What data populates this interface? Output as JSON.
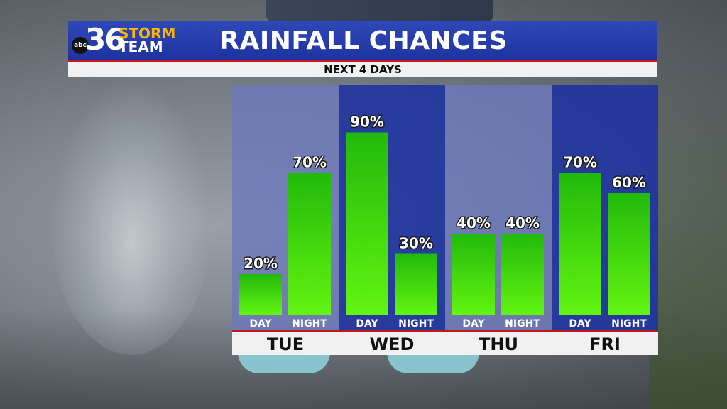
{
  "header": {
    "logo": {
      "network": "abc",
      "number": "36",
      "word1": "STORM",
      "word2": "TEAM"
    },
    "title": "RAINFALL CHANCES",
    "subtitle": "NEXT 4 DAYS"
  },
  "colors": {
    "header_blue": "#2438a8",
    "rule_red": "#c4161c",
    "bar_green_top": "#22b90b",
    "bar_green_bottom": "#62f411",
    "panel_light": "#6b78b8",
    "panel_dark": "#2038a0"
  },
  "chart_data": {
    "type": "bar",
    "categories": [
      "TUE",
      "WED",
      "THU",
      "FRI"
    ],
    "sub_categories": [
      "DAY",
      "NIGHT"
    ],
    "values": [
      [
        20,
        70
      ],
      [
        90,
        30
      ],
      [
        40,
        40
      ],
      [
        70,
        60
      ]
    ],
    "labels": [
      [
        "20%",
        "70%"
      ],
      [
        "90%",
        "30%"
      ],
      [
        "40%",
        "40%"
      ],
      [
        "70%",
        "60%"
      ]
    ],
    "unit": "%",
    "ylim": [
      0,
      100
    ],
    "grid": false,
    "legend": "none"
  }
}
